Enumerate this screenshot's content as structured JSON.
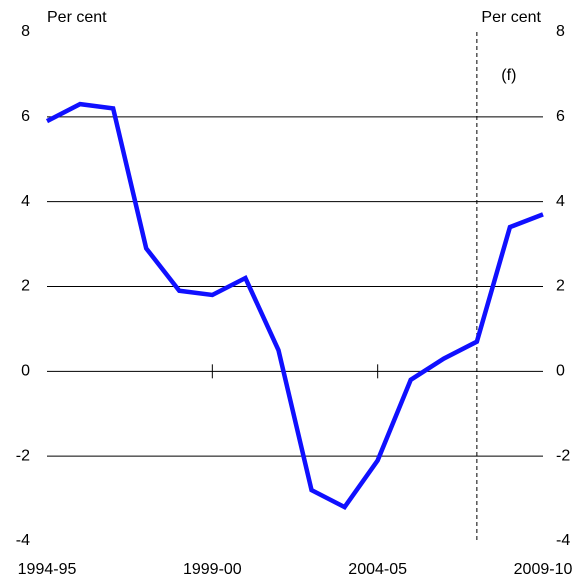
{
  "chart_data": {
    "type": "line",
    "y_label_left": "Per cent",
    "y_label_right": "Per cent",
    "categories": [
      "1994-95",
      null,
      null,
      null,
      null,
      "1999-00",
      null,
      null,
      null,
      null,
      "2004-05",
      null,
      null,
      null,
      null,
      "2009-10"
    ],
    "series": [
      {
        "color": "#1010ff",
        "values": [
          5.9,
          6.3,
          6.2,
          2.9,
          1.9,
          1.8,
          2.2,
          0.5,
          -2.8,
          -3.2,
          -2.1,
          -0.2,
          0.3,
          0.7,
          3.4,
          3.7
        ]
      }
    ],
    "ylim": [
      -4,
      8
    ],
    "yticks": [
      -4,
      -2,
      0,
      2,
      4,
      6,
      8
    ],
    "y2lim": [
      -4,
      8
    ],
    "y2ticks": [
      -4,
      -2,
      0,
      2,
      4,
      6,
      8
    ],
    "grid": true,
    "forecast_line": {
      "x": 13,
      "label": "(f)"
    }
  }
}
